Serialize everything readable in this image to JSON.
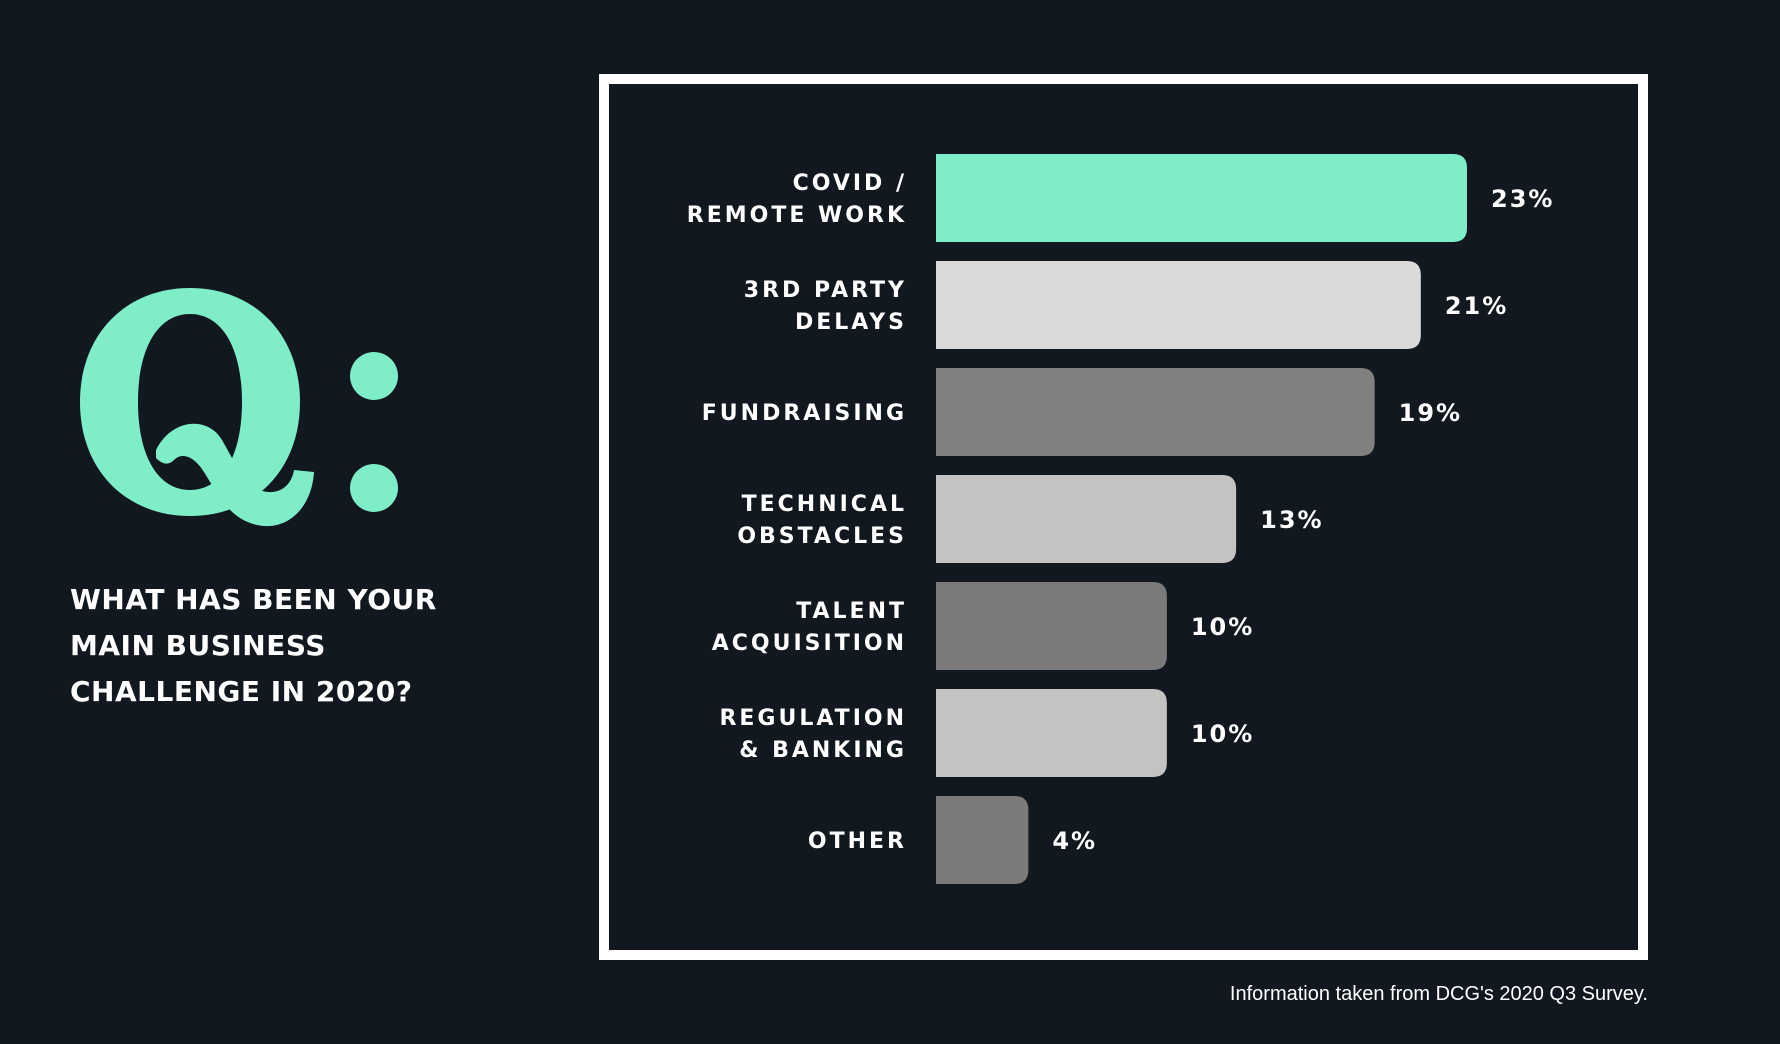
{
  "question": {
    "mark": "Q:",
    "lines": [
      "WHAT HAS BEEN YOUR",
      "MAIN BUSINESS",
      "CHALLENGE IN 2020?"
    ]
  },
  "source_note": "Information taken from DCG's 2020 Q3 Survey.",
  "colors": {
    "background": "#111820",
    "accent": "#7eedc8",
    "frame": "#ffffff"
  },
  "chart_data": {
    "type": "bar",
    "orientation": "horizontal",
    "title": "",
    "xlabel": "",
    "ylabel": "",
    "xlim": [
      0,
      23
    ],
    "grid": false,
    "legend": "none",
    "categories": [
      [
        "COVID /",
        "REMOTE WORK"
      ],
      [
        "3RD PARTY",
        "DELAYS"
      ],
      [
        "FUNDRAISING"
      ],
      [
        "TECHNICAL",
        "OBSTACLES"
      ],
      [
        "TALENT",
        "ACQUISITION"
      ],
      [
        "REGULATION",
        "& BANKING"
      ],
      [
        "OTHER"
      ]
    ],
    "values": [
      23,
      21,
      19,
      13,
      10,
      10,
      4
    ],
    "value_labels": [
      "23%",
      "21%",
      "19%",
      "13%",
      "10%",
      "10%",
      "4%"
    ],
    "bar_colors": [
      "#7eedc8",
      "#dadada",
      "#808080",
      "#c3c3c3",
      "#7b7b7b",
      "#c3c3c3",
      "#7b7b7b"
    ]
  }
}
